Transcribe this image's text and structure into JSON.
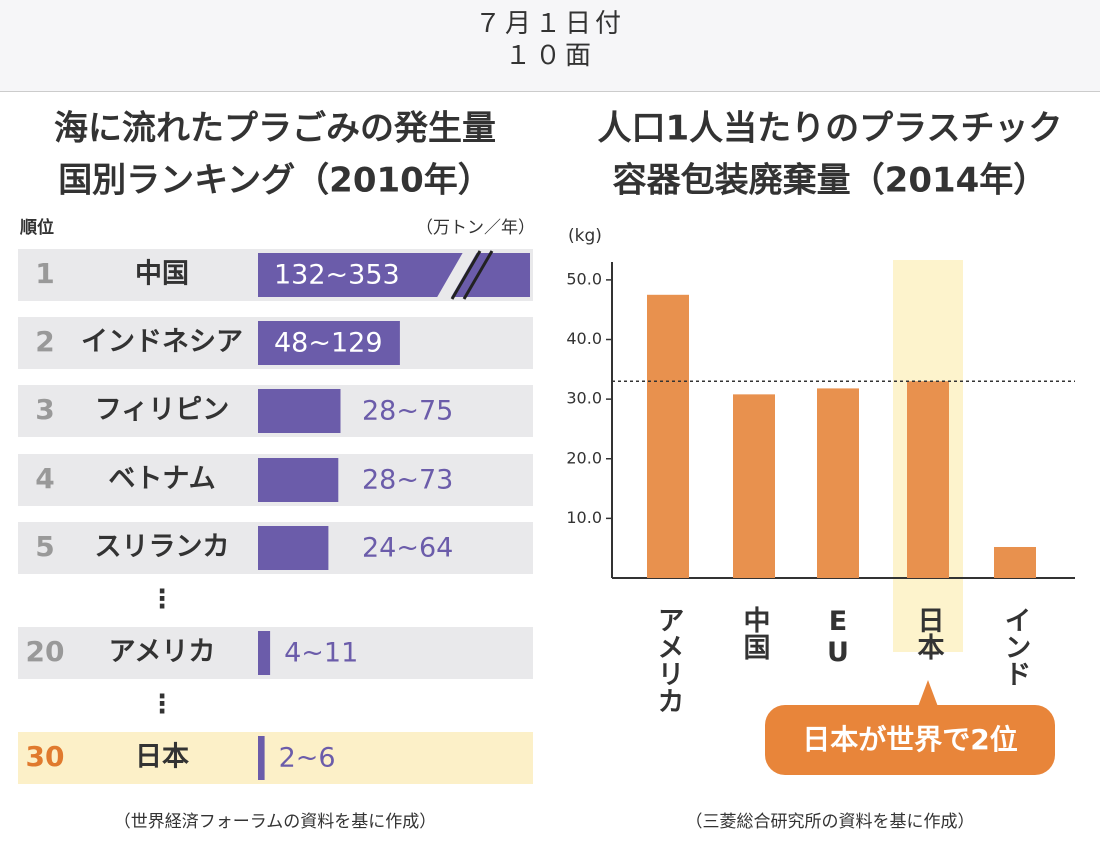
{
  "header": {
    "date": "７月１日付",
    "page": "１０面"
  },
  "chart_data": [
    {
      "type": "ranking-bar",
      "title_lines": [
        "海に流れたプラごみの発生量",
        "国別ランキング（2010年）"
      ],
      "rank_label": "順位",
      "unit": "（万トン／年）",
      "ranks": [
        1,
        2,
        3,
        4,
        5,
        20,
        30
      ],
      "categories": [
        "中国",
        "インドネシア",
        "フィリピン",
        "ベトナム",
        "スリランカ",
        "アメリカ",
        "日本"
      ],
      "low": [
        132,
        48,
        28,
        28,
        24,
        4,
        2
      ],
      "values": [
        353,
        129,
        75,
        73,
        64,
        11,
        6
      ],
      "value_labels": [
        "132~353",
        "48~129",
        "28~75",
        "28~73",
        "24~64",
        "4~11",
        "2~6"
      ],
      "color": "#6b5caa",
      "highlight": "日本",
      "highlight_color": "#fcf0c8",
      "source": "（世界経済フォーラムの資料を基に作成）"
    },
    {
      "type": "bar",
      "title_lines": [
        "人口1人当たりのプラスチック",
        "容器包装廃棄量（2014年）"
      ],
      "y_label": "(kg)",
      "categories": [
        "アメリカ",
        "中国",
        "EU",
        "日本",
        "インド"
      ],
      "values": [
        47.5,
        30.8,
        31.8,
        33,
        5.2
      ],
      "color": "#e8914e",
      "highlight": "日本",
      "highlight_color": "#fdf3cc",
      "ylim": [
        0,
        53
      ],
      "yticks": [
        {
          "value": 10,
          "label": "10.0"
        },
        {
          "value": 20,
          "label": "20.0"
        },
        {
          "value": 30,
          "label": "30.0"
        },
        {
          "value": 40,
          "label": "40.0"
        },
        {
          "value": 50,
          "label": "50.0"
        }
      ],
      "annotation": "日本が世界で2位",
      "annotation_color": "#e8853a",
      "source": "（三菱総合研究所の資料を基に作成）"
    }
  ]
}
